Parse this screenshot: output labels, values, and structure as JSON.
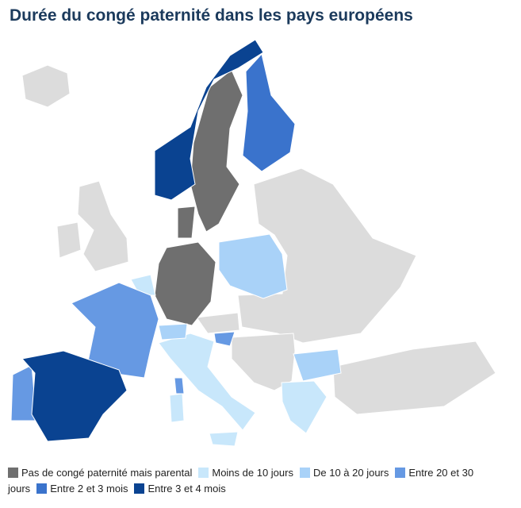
{
  "title": "Durée du congé paternité dans les pays européens",
  "legend": [
    {
      "name": "Pas de congé paternité mais parental",
      "color": "#6f6f6f"
    },
    {
      "name": "Moins de 10 jours",
      "color": "#c8e7fb"
    },
    {
      "name": "De 10 à 20 jours",
      "color": "#a9d2f8"
    },
    {
      "name": "Entre 20 et 30 jours",
      "color": "#6699e3"
    },
    {
      "name": "Entre 2 et 3 mois",
      "color": "#3a73cc"
    },
    {
      "name": "Entre 3 et 4 mois",
      "color": "#0a4391"
    }
  ]
}
